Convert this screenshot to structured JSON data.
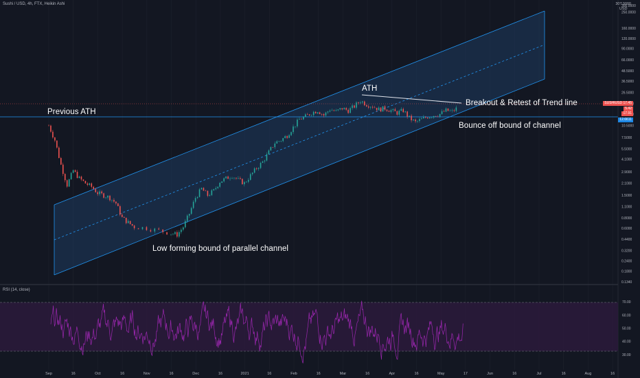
{
  "header": {
    "title": "Sushi / USD, 4h, FTX, Heikin Ashi",
    "currency": "USD",
    "currency_prefix": "30T.0000"
  },
  "rsi": {
    "title": "RSI (14, close)"
  },
  "annotations": {
    "previous_ath": "Previous ATH",
    "ath": "ATH",
    "breakout": "Breakout & Retest of Trend line",
    "bounce": "Bounce off bound of channel",
    "low_bound": "Low forming bound of parallel channel"
  },
  "tags": {
    "price_label": "SUSHIUSD",
    "price_value": "17.45",
    "tag2": "5.42",
    "tag3": "17.91",
    "tag4": "12.6611"
  },
  "colors": {
    "background": "#131722",
    "up": "#26a69a",
    "down": "#ef5350",
    "channel_line": "#2196f3",
    "channel_fill": "#1e3a5f",
    "rsi_line": "#9c27b0",
    "rsi_band": "#2a1a3a",
    "price_tag": "#ef5350",
    "support_tag": "#1e88e5"
  },
  "chart_data": [
    {
      "type": "candlestick",
      "scale": "log",
      "x_ticks": [
        "Sep",
        "16",
        "Oct",
        "16",
        "Nov",
        "16",
        "Dec",
        "16",
        "2021",
        "16",
        "Feb",
        "16",
        "Mar",
        "16",
        "Apr",
        "16",
        "May",
        "17",
        "Jun",
        "16",
        "Jul",
        "16",
        "Aug",
        "16"
      ],
      "y_ticks": [
        300.0,
        250.0,
        160.0,
        120.0,
        90.0,
        66.0,
        48.5,
        36.5,
        26.5,
        19.5,
        14.5,
        10.5,
        7.5,
        5.5,
        4.1,
        2.9,
        2.1,
        1.5,
        1.1,
        0.8,
        0.6,
        0.44,
        0.32,
        0.24,
        0.18,
        0.134
      ],
      "series_path": [
        [
          0,
          10.5
        ],
        [
          2,
          7.0
        ],
        [
          4,
          3.5
        ],
        [
          6,
          2.0
        ],
        [
          8,
          3.0
        ],
        [
          10,
          2.4
        ],
        [
          12,
          2.1
        ],
        [
          14,
          1.9
        ],
        [
          16,
          1.6
        ],
        [
          18,
          1.5
        ],
        [
          20,
          1.4
        ],
        [
          22,
          1.2
        ],
        [
          24,
          0.8
        ],
        [
          26,
          0.7
        ],
        [
          28,
          0.62
        ],
        [
          32,
          0.6
        ],
        [
          36,
          0.56
        ],
        [
          40,
          0.52
        ],
        [
          42,
          0.5
        ],
        [
          44,
          0.62
        ],
        [
          46,
          0.9
        ],
        [
          48,
          1.4
        ],
        [
          50,
          1.8
        ],
        [
          52,
          1.5
        ],
        [
          54,
          1.7
        ],
        [
          56,
          2.2
        ],
        [
          58,
          2.4
        ],
        [
          60,
          2.6
        ],
        [
          62,
          2.3
        ],
        [
          64,
          2.1
        ],
        [
          66,
          2.6
        ],
        [
          68,
          3.2
        ],
        [
          70,
          3.8
        ],
        [
          72,
          5.0
        ],
        [
          74,
          6.5
        ],
        [
          76,
          7.0
        ],
        [
          78,
          8.0
        ],
        [
          80,
          10.0
        ],
        [
          82,
          12.5
        ],
        [
          84,
          13.5
        ],
        [
          86,
          15.0
        ],
        [
          88,
          16.0
        ],
        [
          90,
          14.0
        ],
        [
          92,
          16.5
        ],
        [
          94,
          15.5
        ],
        [
          96,
          17.0
        ],
        [
          98,
          16.0
        ],
        [
          100,
          18.0
        ],
        [
          102,
          21.0
        ],
        [
          104,
          19.0
        ],
        [
          106,
          18.0
        ],
        [
          108,
          16.5
        ],
        [
          110,
          17.0
        ],
        [
          112,
          16.0
        ],
        [
          114,
          15.0
        ],
        [
          116,
          16.0
        ],
        [
          118,
          13.0
        ],
        [
          120,
          11.5
        ],
        [
          122,
          12.5
        ],
        [
          124,
          13.5
        ],
        [
          126,
          14.0
        ],
        [
          128,
          14.5
        ],
        [
          130,
          16.0
        ],
        [
          132,
          15.5
        ],
        [
          134,
          17.5
        ]
      ],
      "ylim": [
        0.134,
        300
      ]
    },
    {
      "type": "line",
      "title": "RSI (14, close)",
      "y_ticks": [
        70.0,
        60.0,
        50.0,
        40.0,
        30.0
      ],
      "band": [
        30,
        70
      ],
      "ylim": [
        20,
        80
      ]
    }
  ]
}
